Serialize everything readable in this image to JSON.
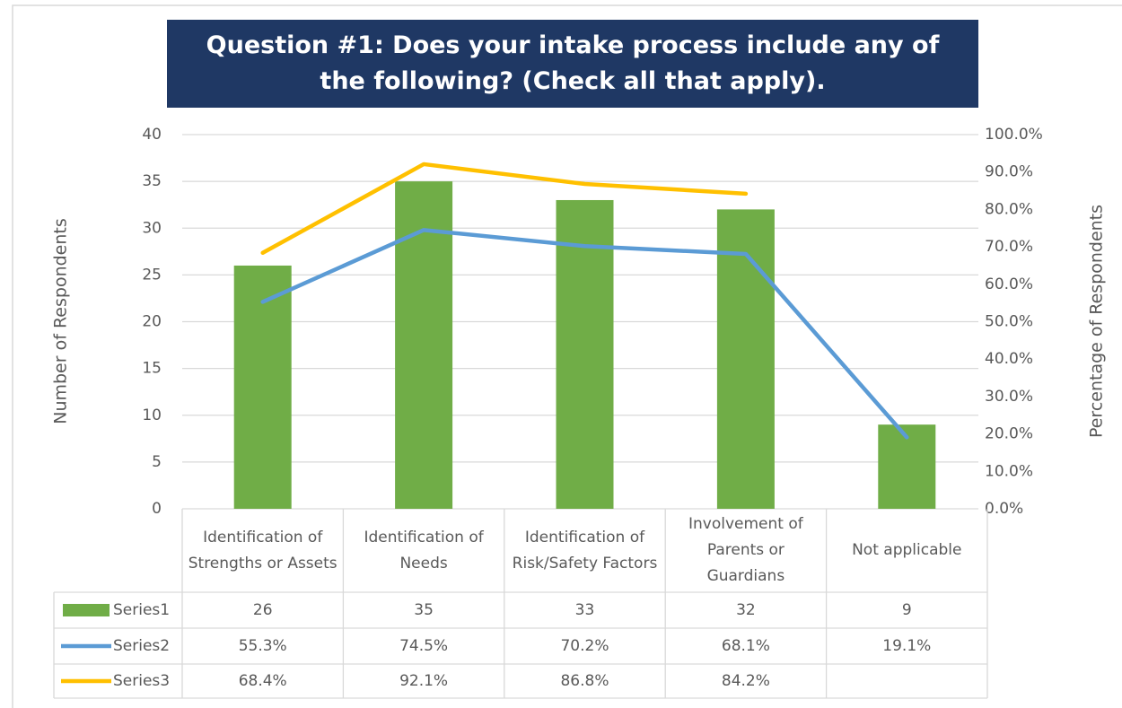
{
  "chart_data": {
    "type": "bar",
    "title": "Question #1:  Does your intake process include any of the following?  (Check all that apply).",
    "ylabel": "Number of Respondents",
    "y2label": "Percentage of Respondents",
    "categories": [
      "Identification of Strengths or Assets",
      "Identification of Needs",
      "Identification of Risk/Safety Factors",
      "Involvement of Parents or Guardians",
      "Not applicable"
    ],
    "series": [
      {
        "name": "Series1",
        "type": "bar",
        "color": "#70ad47",
        "values": [
          26,
          35,
          33,
          32,
          9
        ]
      },
      {
        "name": "Series2",
        "type": "line",
        "axis": "y2",
        "color": "#5b9bd5",
        "values": [
          55.3,
          74.5,
          70.2,
          68.1,
          19.1
        ],
        "value_labels": [
          "55.3%",
          "74.5%",
          "70.2%",
          "68.1%",
          "19.1%"
        ]
      },
      {
        "name": "Series3",
        "type": "line",
        "axis": "y2",
        "color": "#ffc000",
        "values": [
          68.4,
          92.1,
          86.8,
          84.2,
          null
        ],
        "value_labels": [
          "68.4%",
          "92.1%",
          "86.8%",
          "84.2%",
          null
        ]
      }
    ],
    "ylim": [
      0,
      40
    ],
    "yticks": [
      0,
      5,
      10,
      15,
      20,
      25,
      30,
      35,
      40
    ],
    "y2lim": [
      0,
      100
    ],
    "y2ticks": [
      {
        "value": 0,
        "label": "0.0%"
      },
      {
        "value": 10,
        "label": "10.0%"
      },
      {
        "value": 20,
        "label": "20.0%"
      },
      {
        "value": 30,
        "label": "30.0%"
      },
      {
        "value": 40,
        "label": "40.0%"
      },
      {
        "value": 50,
        "label": "50.0%"
      },
      {
        "value": 60,
        "label": "60.0%"
      },
      {
        "value": 70,
        "label": "70.0%"
      },
      {
        "value": 80,
        "label": "80.0%"
      },
      {
        "value": 90,
        "label": "90.0%"
      },
      {
        "value": 100,
        "label": "100.0%"
      }
    ],
    "grid": true
  }
}
